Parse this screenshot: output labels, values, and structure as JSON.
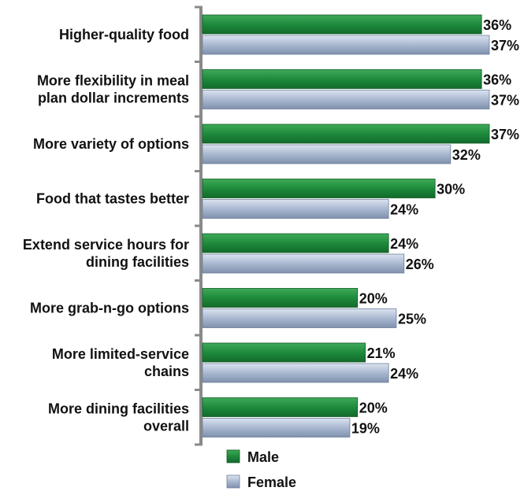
{
  "chart_data": {
    "type": "bar",
    "orientation": "horizontal",
    "categories": [
      [
        "Higher-quality food"
      ],
      [
        "More flexibility in meal",
        "plan dollar increments"
      ],
      [
        "More variety of options"
      ],
      [
        "Food that tastes better"
      ],
      [
        "Extend service hours for",
        "dining facilities"
      ],
      [
        "More grab-n-go options"
      ],
      [
        "More limited-service",
        "chains"
      ],
      [
        "More dining facilities",
        "overall"
      ]
    ],
    "series": [
      {
        "name": "Male",
        "values": [
          36,
          36,
          37,
          30,
          24,
          20,
          21,
          20
        ],
        "color": "#1e8a3c"
      },
      {
        "name": "Female",
        "values": [
          37,
          37,
          32,
          24,
          26,
          25,
          24,
          19
        ],
        "color": "#a9b8d0"
      }
    ],
    "value_suffix": "%",
    "xlim": [
      0,
      37
    ],
    "grid": false,
    "legend_position": "bottom"
  }
}
